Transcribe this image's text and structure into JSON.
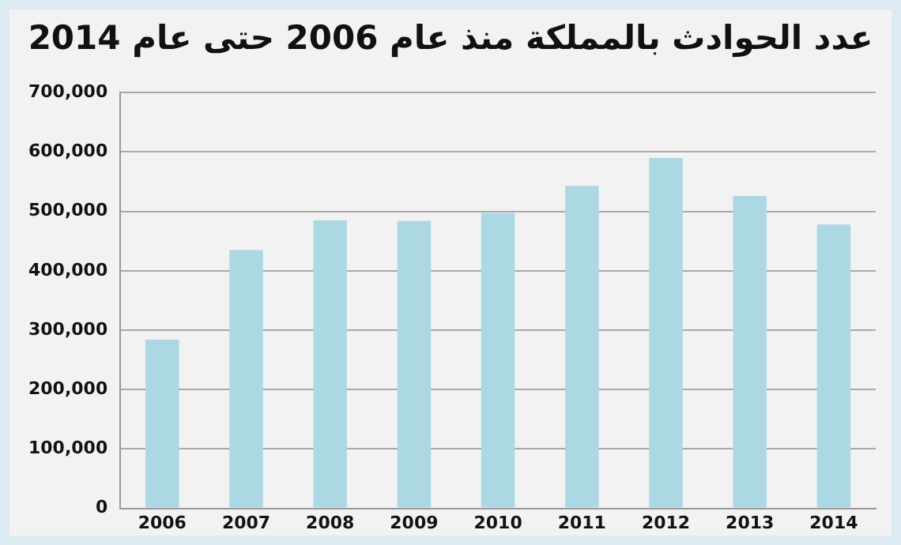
{
  "chart_data": {
    "type": "bar",
    "title": "عدد الحوادث بالمملكة  منذ عام 2006 حتى عام 2014",
    "categories": [
      "2006",
      "2007",
      "2008",
      "2009",
      "2010",
      "2011",
      "2012",
      "2013",
      "2014"
    ],
    "values": [
      284000,
      435000,
      485000,
      484000,
      497000,
      543000,
      590000,
      526000,
      478000
    ],
    "color": "#acd8e4",
    "ylim": [
      0,
      700000
    ],
    "yticks": [
      0,
      {
        "value": 100000,
        "label": "100,000"
      },
      {
        "value": 200000,
        "label": "200,000"
      },
      {
        "value": 300000,
        "label": "300,000"
      },
      {
        "value": 400000,
        "label": "400,000"
      },
      {
        "value": 500000,
        "label": "500,000"
      },
      {
        "value": 600000,
        "label": "600,000"
      },
      {
        "value": 700000,
        "label": "700,000"
      }
    ],
    "grid": "y"
  }
}
